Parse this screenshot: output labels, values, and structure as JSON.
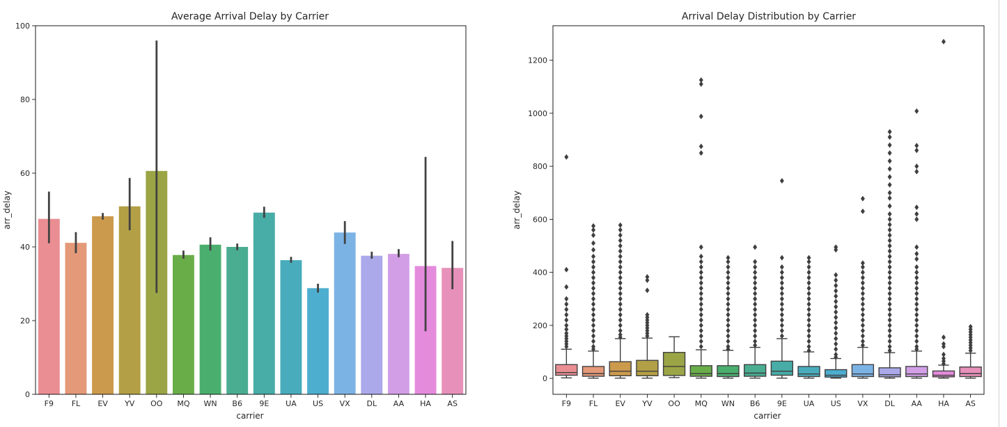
{
  "chart_data": [
    {
      "type": "bar",
      "title": "Average Arrival Delay by Carrier",
      "xlabel": "carrier",
      "ylabel": "arr_delay",
      "ylim": [
        0,
        100
      ],
      "yticks": [
        "0",
        "20",
        "40",
        "60",
        "80",
        "100"
      ],
      "categories": [
        "F9",
        "FL",
        "EV",
        "YV",
        "OO",
        "MQ",
        "WN",
        "B6",
        "9E",
        "UA",
        "US",
        "VX",
        "DL",
        "AA",
        "HA",
        "AS"
      ],
      "values": [
        47.6,
        41.1,
        48.3,
        51.0,
        60.6,
        37.8,
        40.6,
        40.0,
        49.3,
        36.4,
        28.8,
        43.9,
        37.6,
        38.1,
        34.8,
        34.3
      ],
      "ci_low": [
        41.0,
        38.3,
        47.4,
        44.5,
        27.5,
        36.8,
        39.0,
        39.1,
        47.9,
        35.7,
        27.6,
        40.8,
        36.8,
        37.2,
        17.1,
        28.5
      ],
      "ci_high": [
        55.0,
        44.0,
        49.2,
        58.7,
        96.0,
        39.0,
        42.6,
        40.9,
        50.9,
        37.3,
        30.0,
        47.0,
        38.7,
        39.4,
        64.4,
        41.6
      ],
      "colors": [
        "#ea8e93",
        "#e49979",
        "#cc9a4d",
        "#b39f45",
        "#9ba545",
        "#69ad49",
        "#4aaf6e",
        "#4aad92",
        "#48aca7",
        "#49acbc",
        "#4eaecf",
        "#7cb3e5",
        "#aba9ea",
        "#d29fe7",
        "#e58bdc",
        "#e790ba"
      ],
      "grid": false
    },
    {
      "type": "box",
      "title": "Arrival Delay Distribution by Carrier",
      "xlabel": "carrier",
      "ylabel": "arr_delay",
      "ylim": [
        -60,
        1330
      ],
      "yticks": [
        "0",
        "200",
        "400",
        "600",
        "800",
        "1000",
        "1200"
      ],
      "categories": [
        "F9",
        "FL",
        "EV",
        "YV",
        "OO",
        "MQ",
        "WN",
        "B6",
        "9E",
        "UA",
        "US",
        "VX",
        "DL",
        "AA",
        "HA",
        "AS"
      ],
      "boxes": [
        {
          "q1": 12,
          "median": 22,
          "q3": 52,
          "whislo": 2,
          "whishi": 110,
          "fliers": [
            835,
            410,
            345,
            300,
            280,
            260,
            240,
            220,
            200,
            185,
            170,
            160,
            150,
            140,
            130,
            120
          ]
        },
        {
          "q1": 8,
          "median": 18,
          "q3": 45,
          "whislo": 1,
          "whishi": 103,
          "fliers": [
            575,
            560,
            540,
            510,
            485,
            460,
            440,
            420,
            400,
            380,
            360,
            340,
            320,
            300,
            280,
            260,
            240,
            220,
            200,
            180,
            160,
            140,
            120,
            110
          ]
        },
        {
          "q1": 10,
          "median": 27,
          "q3": 63,
          "whislo": 1,
          "whishi": 150,
          "fliers": [
            578,
            560,
            540,
            520,
            500,
            480,
            460,
            440,
            420,
            400,
            380,
            360,
            340,
            320,
            300,
            280,
            260,
            240,
            220,
            200,
            180,
            165,
            155
          ]
        },
        {
          "q1": 10,
          "median": 27,
          "q3": 68,
          "whislo": 1,
          "whishi": 152,
          "fliers": [
            383,
            370,
            332,
            240,
            230,
            220,
            210,
            200,
            190,
            180,
            170,
            160
          ]
        },
        {
          "q1": 11,
          "median": 45,
          "q3": 98,
          "whislo": 3,
          "whishi": 157,
          "fliers": []
        },
        {
          "q1": 8,
          "median": 18,
          "q3": 48,
          "whislo": 1,
          "whishi": 108,
          "fliers": [
            1125,
            1110,
            988,
            875,
            850,
            495,
            460,
            440,
            420,
            400,
            380,
            360,
            340,
            320,
            300,
            280,
            260,
            240,
            220,
            200,
            180,
            160,
            140,
            120
          ]
        },
        {
          "q1": 7,
          "median": 18,
          "q3": 48,
          "whislo": 1,
          "whishi": 106,
          "fliers": [
            455,
            440,
            420,
            400,
            380,
            360,
            340,
            320,
            300,
            280,
            260,
            240,
            220,
            200,
            180,
            160,
            140,
            120,
            110
          ]
        },
        {
          "q1": 8,
          "median": 20,
          "q3": 52,
          "whislo": 1,
          "whishi": 117,
          "fliers": [
            495,
            440,
            420,
            400,
            380,
            360,
            340,
            320,
            300,
            280,
            260,
            240,
            220,
            200,
            180,
            160,
            140,
            125
          ]
        },
        {
          "q1": 12,
          "median": 27,
          "q3": 65,
          "whislo": 1,
          "whishi": 150,
          "fliers": [
            745,
            455,
            420,
            400,
            380,
            360,
            340,
            320,
            300,
            280,
            260,
            240,
            220,
            200,
            180,
            160
          ]
        },
        {
          "q1": 7,
          "median": 17,
          "q3": 45,
          "whislo": 1,
          "whishi": 100,
          "fliers": [
            455,
            440,
            420,
            400,
            380,
            360,
            340,
            320,
            300,
            280,
            260,
            240,
            220,
            200,
            180,
            160,
            140,
            120,
            105
          ]
        },
        {
          "q1": 5,
          "median": 12,
          "q3": 33,
          "whislo": 1,
          "whishi": 75,
          "fliers": [
            495,
            485,
            390,
            370,
            350,
            330,
            310,
            290,
            270,
            250,
            230,
            210,
            190,
            170,
            150,
            130,
            110,
            90,
            80
          ]
        },
        {
          "q1": 7,
          "median": 17,
          "q3": 52,
          "whislo": 1,
          "whishi": 117,
          "fliers": [
            678,
            630,
            435,
            420,
            400,
            380,
            360,
            340,
            320,
            300,
            280,
            260,
            240,
            220,
            200,
            180,
            160,
            140,
            125
          ]
        },
        {
          "q1": 6,
          "median": 14,
          "q3": 40,
          "whislo": 1,
          "whishi": 97,
          "fliers": [
            930,
            910,
            880,
            850,
            820,
            790,
            760,
            730,
            700,
            680,
            650,
            620,
            600,
            580,
            560,
            540,
            520,
            500,
            480,
            460,
            440,
            420,
            400,
            380,
            360,
            340,
            320,
            300,
            280,
            260,
            240,
            220,
            200,
            180,
            160,
            140,
            120,
            105
          ]
        },
        {
          "q1": 7,
          "median": 17,
          "q3": 45,
          "whislo": 1,
          "whishi": 103,
          "fliers": [
            1008,
            878,
            860,
            800,
            780,
            645,
            620,
            600,
            495,
            470,
            450,
            420,
            400,
            380,
            360,
            340,
            320,
            300,
            280,
            260,
            240,
            220,
            200,
            180,
            160,
            140,
            120,
            110
          ]
        },
        {
          "q1": 6,
          "median": 12,
          "q3": 28,
          "whislo": 1,
          "whishi": 50,
          "fliers": [
            1270,
            155,
            130,
            120,
            90,
            75,
            65,
            55
          ]
        },
        {
          "q1": 7,
          "median": 18,
          "q3": 43,
          "whislo": 1,
          "whishi": 95,
          "fliers": [
            195,
            185,
            175,
            165,
            155,
            145,
            135,
            125,
            115,
            105
          ]
        }
      ],
      "colors": [
        "#ea8e93",
        "#e49979",
        "#cc9a4d",
        "#b39f45",
        "#9ba545",
        "#69ad49",
        "#4aaf6e",
        "#4aad92",
        "#48aca7",
        "#49acbc",
        "#4eaecf",
        "#7cb3e5",
        "#aba9ea",
        "#d29fe7",
        "#e58bdc",
        "#e790ba"
      ],
      "grid": false
    }
  ]
}
